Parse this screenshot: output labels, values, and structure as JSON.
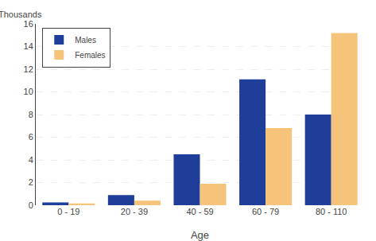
{
  "chart_data": {
    "type": "bar",
    "xlabel": "Age",
    "ylabel": "Thousands",
    "categories": [
      "0 - 19",
      "20 - 39",
      "40 - 59",
      "60 - 79",
      "80 - 110"
    ],
    "series": [
      {
        "name": "Males",
        "color": "#1f3e99",
        "values": [
          0.25,
          0.9,
          4.5,
          11.1,
          8.0
        ]
      },
      {
        "name": "Females",
        "color": "#f5c47a",
        "values": [
          0.15,
          0.4,
          1.9,
          6.8,
          15.2
        ]
      }
    ],
    "ylim": [
      0,
      16
    ],
    "yticks": [
      0,
      2,
      4,
      6,
      8,
      10,
      12,
      14,
      16
    ],
    "grid": true,
    "legend": "upper left"
  }
}
